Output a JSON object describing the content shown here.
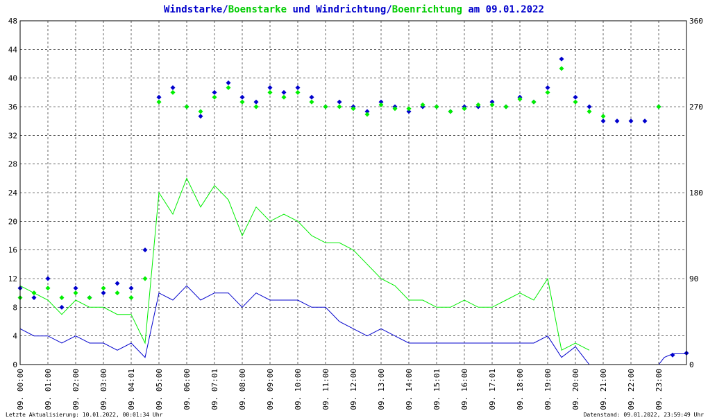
{
  "chart_data": {
    "type": "line",
    "title_parts": [
      {
        "text": "Windstarke",
        "color": "#0000cc"
      },
      {
        "text": "/",
        "color": "#0000cc"
      },
      {
        "text": "Boenstarke",
        "color": "#00cc00"
      },
      {
        "text": " und ",
        "color": "#0000cc"
      },
      {
        "text": "Windrichtung",
        "color": "#0000cc"
      },
      {
        "text": "/",
        "color": "#0000cc"
      },
      {
        "text": "Boenrichtung",
        "color": "#00cc00"
      },
      {
        "text": " am 09.01.2022",
        "color": "#0000cc"
      }
    ],
    "y_left": {
      "min": 0,
      "max": 48,
      "ticks": [
        "0",
        "4",
        "8",
        "12",
        "16",
        "20",
        "24",
        "28",
        "32",
        "36",
        "40",
        "44",
        "48"
      ]
    },
    "y_right": {
      "min": 0,
      "max": 360,
      "ticks": [
        "0",
        "90",
        "180",
        "270",
        "360"
      ]
    },
    "x": {
      "min": 0,
      "max": 24,
      "ticks": [
        "09. 00:00",
        "09. 01:00",
        "09. 02:00",
        "09. 03:00",
        "09. 04:01",
        "09. 05:00",
        "09. 06:00",
        "09. 07:01",
        "09. 08:00",
        "09. 09:00",
        "09. 10:00",
        "09. 11:00",
        "09. 12:00",
        "09. 13:00",
        "09. 14:00",
        "09. 15:01",
        "09. 16:00",
        "09. 17:01",
        "09. 18:00",
        "09. 19:00",
        "09. 20:00",
        "09. 21:00",
        "09. 22:00",
        "09. 23:00"
      ]
    },
    "grid": true,
    "colors": {
      "wind": "#0000cc",
      "gust": "#00ee00",
      "frame": "#000000"
    },
    "series": [
      {
        "name": "Windstarke",
        "axis": "left",
        "style": "line",
        "color": "#0000cc",
        "x": [
          0,
          0.5,
          1,
          1.5,
          2,
          2.5,
          3,
          3.5,
          4,
          4.5,
          5,
          5.5,
          6,
          6.5,
          7,
          7.5,
          8,
          8.5,
          9,
          9.5,
          10,
          10.5,
          11,
          11.5,
          12,
          12.5,
          13,
          13.5,
          14,
          14.5,
          15,
          15.5,
          16,
          16.5,
          17,
          17.5,
          18,
          18.5,
          19,
          19.5,
          20,
          20.5,
          21,
          22,
          23,
          23.2,
          23.5,
          24
        ],
        "y": [
          5,
          4,
          4,
          3,
          4,
          3,
          3,
          2,
          3,
          1,
          10,
          9,
          11,
          9,
          10,
          10,
          8,
          10,
          9,
          9,
          9,
          8,
          8,
          6,
          5,
          4,
          5,
          4,
          3,
          3,
          3,
          3,
          3,
          3,
          3,
          3,
          3,
          3,
          4,
          1,
          2.5,
          0,
          0,
          0,
          0,
          1,
          1.5,
          1.5
        ]
      },
      {
        "name": "Boenstarke",
        "axis": "left",
        "style": "line",
        "color": "#00ee00",
        "x": [
          0,
          0.5,
          1,
          1.5,
          2,
          2.5,
          3,
          3.5,
          4,
          4.5,
          5,
          5.5,
          6,
          6.5,
          7,
          7.5,
          8,
          8.5,
          9,
          9.5,
          10,
          10.5,
          11,
          11.5,
          12,
          12.5,
          13,
          13.5,
          14,
          14.5,
          15,
          15.5,
          16,
          16.5,
          17,
          17.5,
          18,
          18.5,
          19,
          19.5,
          20,
          20.5
        ],
        "y": [
          11,
          10,
          9,
          7,
          9,
          8,
          8,
          7,
          7,
          3,
          24,
          21,
          26,
          22,
          25,
          23,
          18,
          22,
          20,
          21,
          20,
          18,
          17,
          17,
          16,
          14,
          12,
          11,
          9,
          9,
          8,
          8,
          9,
          8,
          8,
          9,
          10,
          9,
          12,
          2,
          3,
          2
        ]
      },
      {
        "name": "Windrichtung",
        "axis": "right",
        "style": "points",
        "color": "#0000cc",
        "x": [
          0,
          0.5,
          1,
          1.5,
          2,
          2.5,
          3,
          3.5,
          4,
          4.5,
          5,
          5.5,
          6,
          6.5,
          7,
          7.5,
          8,
          8.5,
          9,
          9.5,
          10,
          10.5,
          11,
          11.5,
          12,
          12.5,
          13,
          13.5,
          14,
          14.5,
          15,
          15.5,
          16,
          16.5,
          17,
          17.5,
          18,
          18.5,
          19,
          19.5,
          20,
          20.5,
          21,
          21.5,
          22,
          22.5,
          23,
          23.5,
          24
        ],
        "y": [
          80,
          70,
          90,
          60,
          80,
          70,
          75,
          85,
          80,
          120,
          280,
          290,
          270,
          260,
          285,
          295,
          280,
          275,
          290,
          285,
          290,
          280,
          270,
          275,
          270,
          265,
          275,
          270,
          265,
          270,
          270,
          265,
          270,
          270,
          275,
          270,
          280,
          275,
          290,
          320,
          280,
          270,
          255,
          255,
          255,
          255,
          270,
          10,
          12
        ]
      },
      {
        "name": "Boenrichtung",
        "axis": "right",
        "style": "points",
        "color": "#00ee00",
        "x": [
          0,
          0.5,
          1,
          1.5,
          2,
          2.5,
          3,
          3.5,
          4,
          4.5,
          5,
          5.5,
          6,
          6.5,
          7,
          7.5,
          8,
          8.5,
          9,
          9.5,
          10,
          10.5,
          11,
          11.5,
          12,
          12.5,
          13,
          13.5,
          14,
          14.5,
          15,
          15.5,
          16,
          16.5,
          17,
          17.5,
          18,
          18.5,
          19,
          19.5,
          20,
          20.5,
          21,
          23
        ],
        "y": [
          70,
          75,
          80,
          70,
          75,
          70,
          80,
          75,
          70,
          90,
          275,
          285,
          270,
          265,
          280,
          290,
          275,
          270,
          285,
          280,
          285,
          275,
          270,
          270,
          268,
          262,
          272,
          268,
          268,
          272,
          270,
          265,
          268,
          272,
          272,
          270,
          278,
          275,
          285,
          310,
          275,
          265,
          260,
          270
        ]
      }
    ],
    "footer_left": "Letzte Aktualisierung: 10.01.2022, 00:01:34 Uhr",
    "footer_right": "Datenstand: 09.01.2022, 23:59:49 Uhr"
  }
}
